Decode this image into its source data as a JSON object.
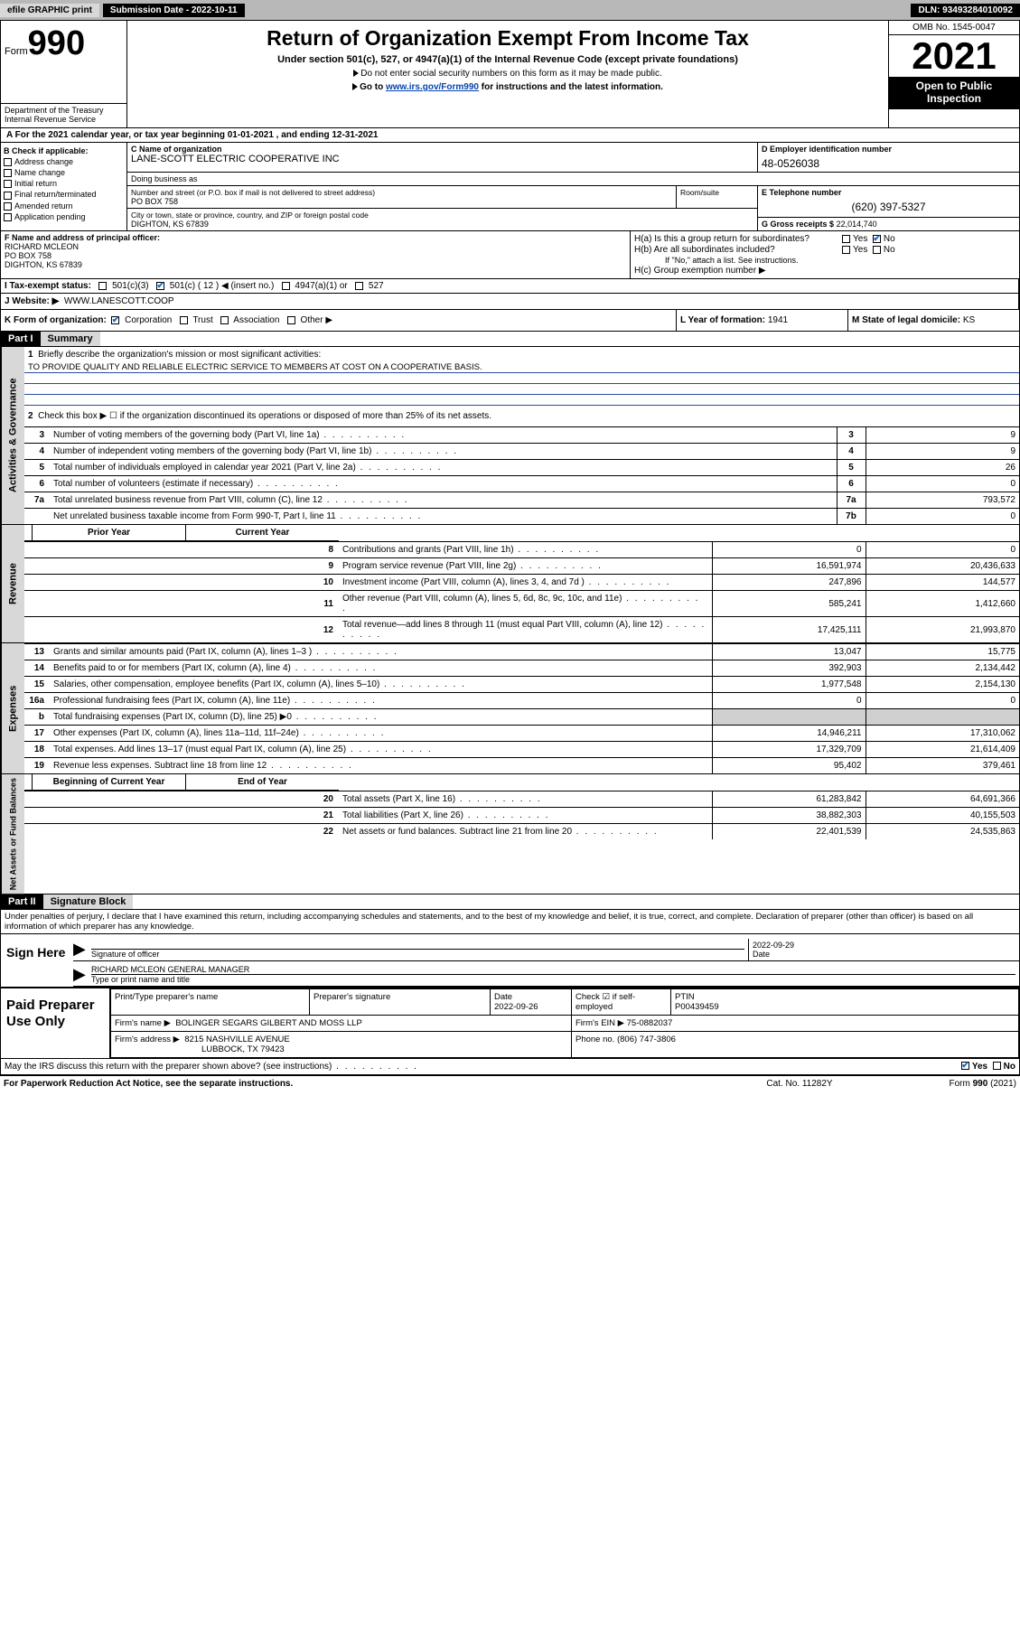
{
  "topbar": {
    "efile": "efile GRAPHIC print",
    "submission_label": "Submission Date - 2022-10-11",
    "dln_label": "DLN: 93493284010092"
  },
  "header": {
    "form_prefix": "Form",
    "form_number": "990",
    "dept": "Department of the Treasury\nInternal Revenue Service",
    "title": "Return of Organization Exempt From Income Tax",
    "sub1": "Under section 501(c), 527, or 4947(a)(1) of the Internal Revenue Code (except private foundations)",
    "sub2": "Do not enter social security numbers on this form as it may be made public.",
    "sub3_a": "Go to ",
    "sub3_link": "www.irs.gov/Form990",
    "sub3_b": " for instructions and the latest information.",
    "omb": "OMB No. 1545-0047",
    "year": "2021",
    "otp": "Open to Public Inspection"
  },
  "rowA": {
    "text_a": "A For the 2021 calendar year, or tax year beginning ",
    "begin": "01-01-2021",
    "text_b": " , and ending ",
    "end": "12-31-2021"
  },
  "sectionB": {
    "label": "B Check if applicable:",
    "opts": [
      "Address change",
      "Name change",
      "Initial return",
      "Final return/terminated",
      "Amended return",
      "Application pending"
    ]
  },
  "sectionC": {
    "name_lbl": "C Name of organization",
    "name": "LANE-SCOTT ELECTRIC COOPERATIVE INC",
    "dba_lbl": "Doing business as",
    "dba": "",
    "street_lbl": "Number and street (or P.O. box if mail is not delivered to street address)",
    "street": "PO BOX 758",
    "suite_lbl": "Room/suite",
    "city_lbl": "City or town, state or province, country, and ZIP or foreign postal code",
    "city": "DIGHTON, KS  67839"
  },
  "sectionD": {
    "lbl": "D Employer identification number",
    "ein": "48-0526038"
  },
  "sectionE": {
    "lbl": "E Telephone number",
    "tel": "(620) 397-5327"
  },
  "sectionG": {
    "lbl": "G Gross receipts $",
    "val": "22,014,740"
  },
  "sectionF": {
    "lbl": "F Name and address of principal officer:",
    "name": "RICHARD MCLEON",
    "addr1": "PO BOX 758",
    "addr2": "DIGHTON, KS  67839"
  },
  "sectionH": {
    "a_lbl": "H(a)  Is this a group return for subordinates?",
    "b_lbl": "H(b)  Are all subordinates included?",
    "b_note": "If \"No,\" attach a list. See instructions.",
    "c_lbl": "H(c)  Group exemption number ▶"
  },
  "sectionI": {
    "lbl": "I   Tax-exempt status:",
    "c12": "501(c) ( 12 ) ◀ (insert no.)"
  },
  "sectionJ": {
    "lbl": "J   Website: ▶",
    "val": "WWW.LANESCOTT.COOP"
  },
  "sectionK": {
    "lbl": "K Form of organization:"
  },
  "sectionL": {
    "lbl": "L Year of formation:",
    "val": "1941"
  },
  "sectionM": {
    "lbl": "M State of legal domicile:",
    "val": "KS"
  },
  "part1": {
    "hdr": "Part I",
    "title": "Summary",
    "line1_lbl": "Briefly describe the organization's mission or most significant activities:",
    "line1_val": "TO PROVIDE QUALITY AND RELIABLE ELECTRIC SERVICE TO MEMBERS AT COST ON A COOPERATIVE BASIS.",
    "line2": "Check this box ▶ ☐  if the organization discontinued its operations or disposed of more than 25% of its net assets.",
    "gov_label": "Activities & Governance",
    "rev_label": "Revenue",
    "exp_label": "Expenses",
    "na_label": "Net Assets or Fund Balances",
    "col_prior": "Prior Year",
    "col_curr": "Current Year",
    "col_beg": "Beginning of Current Year",
    "col_end": "End of Year",
    "lines_gov": [
      {
        "n": "3",
        "t": "Number of voting members of the governing body (Part VI, line 1a)",
        "box": "3",
        "v": "9"
      },
      {
        "n": "4",
        "t": "Number of independent voting members of the governing body (Part VI, line 1b)",
        "box": "4",
        "v": "9"
      },
      {
        "n": "5",
        "t": "Total number of individuals employed in calendar year 2021 (Part V, line 2a)",
        "box": "5",
        "v": "26"
      },
      {
        "n": "6",
        "t": "Total number of volunteers (estimate if necessary)",
        "box": "6",
        "v": "0"
      },
      {
        "n": "7a",
        "t": "Total unrelated business revenue from Part VIII, column (C), line 12",
        "box": "7a",
        "v": "793,572"
      },
      {
        "n": "",
        "t": "Net unrelated business taxable income from Form 990-T, Part I, line 11",
        "box": "7b",
        "v": "0"
      }
    ],
    "lines_rev": [
      {
        "n": "8",
        "t": "Contributions and grants (Part VIII, line 1h)",
        "p": "0",
        "c": "0"
      },
      {
        "n": "9",
        "t": "Program service revenue (Part VIII, line 2g)",
        "p": "16,591,974",
        "c": "20,436,633"
      },
      {
        "n": "10",
        "t": "Investment income (Part VIII, column (A), lines 3, 4, and 7d )",
        "p": "247,896",
        "c": "144,577"
      },
      {
        "n": "11",
        "t": "Other revenue (Part VIII, column (A), lines 5, 6d, 8c, 9c, 10c, and 11e)",
        "p": "585,241",
        "c": "1,412,660"
      },
      {
        "n": "12",
        "t": "Total revenue—add lines 8 through 11 (must equal Part VIII, column (A), line 12)",
        "p": "17,425,111",
        "c": "21,993,870"
      }
    ],
    "lines_exp": [
      {
        "n": "13",
        "t": "Grants and similar amounts paid (Part IX, column (A), lines 1–3 )",
        "p": "13,047",
        "c": "15,775"
      },
      {
        "n": "14",
        "t": "Benefits paid to or for members (Part IX, column (A), line 4)",
        "p": "392,903",
        "c": "2,134,442"
      },
      {
        "n": "15",
        "t": "Salaries, other compensation, employee benefits (Part IX, column (A), lines 5–10)",
        "p": "1,977,548",
        "c": "2,154,130"
      },
      {
        "n": "16a",
        "t": "Professional fundraising fees (Part IX, column (A), line 11e)",
        "p": "0",
        "c": "0"
      },
      {
        "n": "b",
        "t": "Total fundraising expenses (Part IX, column (D), line 25) ▶0",
        "p": "",
        "c": "",
        "shade": true
      },
      {
        "n": "17",
        "t": "Other expenses (Part IX, column (A), lines 11a–11d, 11f–24e)",
        "p": "14,946,211",
        "c": "17,310,062"
      },
      {
        "n": "18",
        "t": "Total expenses. Add lines 13–17 (must equal Part IX, column (A), line 25)",
        "p": "17,329,709",
        "c": "21,614,409"
      },
      {
        "n": "19",
        "t": "Revenue less expenses. Subtract line 18 from line 12",
        "p": "95,402",
        "c": "379,461"
      }
    ],
    "lines_na": [
      {
        "n": "20",
        "t": "Total assets (Part X, line 16)",
        "p": "61,283,842",
        "c": "64,691,366"
      },
      {
        "n": "21",
        "t": "Total liabilities (Part X, line 26)",
        "p": "38,882,303",
        "c": "40,155,503"
      },
      {
        "n": "22",
        "t": "Net assets or fund balances. Subtract line 21 from line 20",
        "p": "22,401,539",
        "c": "24,535,863"
      }
    ]
  },
  "part2": {
    "hdr": "Part II",
    "title": "Signature Block",
    "intro": "Under penalties of perjury, I declare that I have examined this return, including accompanying schedules and statements, and to the best of my knowledge and belief, it is true, correct, and complete. Declaration of preparer (other than officer) is based on all information of which preparer has any knowledge.",
    "sign_here": "Sign Here",
    "sig_officer_lbl": "Signature of officer",
    "sig_date_lbl": "Date",
    "sig_date": "2022-09-29",
    "sig_name": "RICHARD MCLEON  GENERAL MANAGER",
    "sig_name_lbl": "Type or print name and title",
    "paid": "Paid Preparer Use Only",
    "prep_name_lbl": "Print/Type preparer's name",
    "prep_sig_lbl": "Preparer's signature",
    "prep_date_lbl": "Date",
    "prep_date": "2022-09-26",
    "prep_self_lbl": "Check ☑ if self-employed",
    "ptin_lbl": "PTIN",
    "ptin": "P00439459",
    "firm_name_lbl": "Firm's name    ▶",
    "firm_name": "BOLINGER SEGARS GILBERT AND MOSS LLP",
    "firm_ein_lbl": "Firm's EIN ▶",
    "firm_ein": "75-0882037",
    "firm_addr_lbl": "Firm's address ▶",
    "firm_addr1": "8215 NASHVILLE AVENUE",
    "firm_addr2": "LUBBOCK, TX  79423",
    "phone_lbl": "Phone no.",
    "phone": "(806) 747-3806",
    "may_lbl": "May the IRS discuss this return with the preparer shown above? (see instructions)"
  },
  "footer": {
    "left": "For Paperwork Reduction Act Notice, see the separate instructions.",
    "mid": "Cat. No. 11282Y",
    "right": "Form 990 (2021)"
  }
}
